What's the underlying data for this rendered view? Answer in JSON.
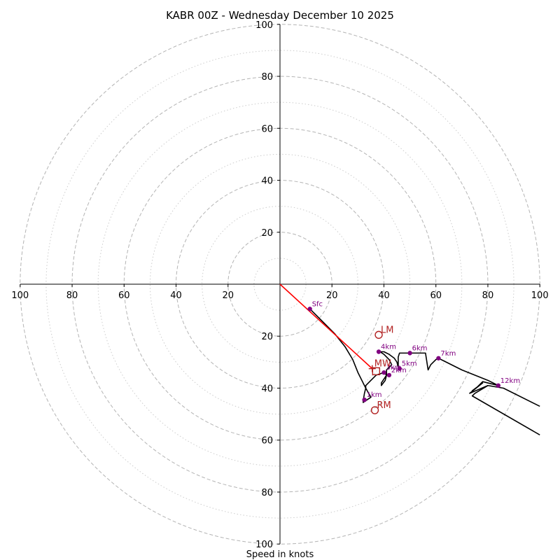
{
  "chart_data": {
    "type": "hodograph",
    "title": "KABR 00Z - Wednesday December 10 2025",
    "xlabel": "Speed in knots",
    "range": [
      -100,
      100
    ],
    "ring_major": [
      20,
      40,
      60,
      80,
      100
    ],
    "ring_minor": [
      10,
      30,
      50,
      70,
      90
    ],
    "x_ticks": [
      {
        "value": -100,
        "label": "100"
      },
      {
        "value": -80,
        "label": "80"
      },
      {
        "value": -60,
        "label": "60"
      },
      {
        "value": -40,
        "label": "40"
      },
      {
        "value": -20,
        "label": "20"
      },
      {
        "value": 20,
        "label": "20"
      },
      {
        "value": 40,
        "label": "40"
      },
      {
        "value": 60,
        "label": "60"
      },
      {
        "value": 80,
        "label": "80"
      },
      {
        "value": 100,
        "label": "100"
      }
    ],
    "y_ticks": [
      {
        "value": 100,
        "label": "100"
      },
      {
        "value": 80,
        "label": "80"
      },
      {
        "value": 60,
        "label": "60"
      },
      {
        "value": 40,
        "label": "40"
      },
      {
        "value": 20,
        "label": "20"
      },
      {
        "value": -20,
        "label": "20"
      },
      {
        "value": -40,
        "label": "40"
      },
      {
        "value": -60,
        "label": "60"
      },
      {
        "value": -80,
        "label": "80"
      },
      {
        "value": -100,
        "label": "100"
      }
    ],
    "trace_color": "#000000",
    "trace": [
      [
        11.5,
        -9.5
      ],
      [
        16,
        -14
      ],
      [
        21,
        -19
      ],
      [
        25,
        -24
      ],
      [
        28,
        -29
      ],
      [
        30,
        -34
      ],
      [
        32,
        -38
      ],
      [
        33,
        -40
      ],
      [
        33,
        -39
      ],
      [
        35,
        -37
      ],
      [
        37,
        -35
      ],
      [
        40,
        -34
      ],
      [
        41,
        -35
      ],
      [
        40.5,
        -37
      ],
      [
        39,
        -39
      ],
      [
        39,
        -38
      ],
      [
        41,
        -35
      ],
      [
        41,
        -33
      ],
      [
        43,
        -31
      ],
      [
        42,
        -29
      ],
      [
        41,
        -28
      ],
      [
        40,
        -27
      ],
      [
        38.5,
        -26
      ],
      [
        40,
        -26
      ],
      [
        42,
        -27
      ],
      [
        44,
        -28.5
      ],
      [
        45,
        -30
      ],
      [
        45.5,
        -32
      ],
      [
        46,
        -33
      ],
      [
        45.5,
        -32
      ],
      [
        45.5,
        -28
      ],
      [
        46,
        -26.5
      ],
      [
        48,
        -26.5
      ],
      [
        50,
        -26.5
      ],
      [
        56,
        -26.5
      ],
      [
        57,
        -33
      ],
      [
        58,
        -31
      ],
      [
        60,
        -29
      ],
      [
        61,
        -28.5
      ],
      [
        70,
        -33
      ],
      [
        80,
        -37
      ],
      [
        84,
        -39
      ],
      [
        80,
        -38
      ],
      [
        78,
        -37.5
      ],
      [
        76,
        -39.5
      ],
      [
        74,
        -41
      ],
      [
        78,
        -38
      ],
      [
        73,
        -42
      ],
      [
        80,
        -39
      ],
      [
        86,
        -40
      ],
      [
        100,
        -47
      ]
    ],
    "trace_low": [
      [
        33,
        -40
      ],
      [
        32.5,
        -42
      ],
      [
        32,
        -45
      ],
      [
        32,
        -45.5
      ],
      [
        35,
        -43.5
      ],
      [
        33,
        -40
      ]
    ],
    "trace_branch": [
      [
        80,
        -39
      ],
      [
        75,
        -42
      ],
      [
        74,
        -43
      ],
      [
        100,
        -58
      ]
    ],
    "height_markers": [
      {
        "label": "Sfc",
        "u": 11.5,
        "v": -9.5
      },
      {
        "label": "1km",
        "u": 32.5,
        "v": -44.5
      },
      {
        "label": "2km",
        "u": 42,
        "v": -35
      },
      {
        "label": "3km",
        "u": 40,
        "v": -34
      },
      {
        "label": "4km",
        "u": 38,
        "v": -26
      },
      {
        "label": "5km",
        "u": 46,
        "v": -32.5
      },
      {
        "label": "6km",
        "u": 50,
        "v": -26.5
      },
      {
        "label": "7km",
        "u": 61,
        "v": -28.5
      },
      {
        "label": "12km",
        "u": 84,
        "v": -39
      }
    ],
    "marker_color": "#800080",
    "storm_motion": [
      {
        "label": "LM",
        "u": 38,
        "v": -19.5,
        "symbol": "circle"
      },
      {
        "label": "RM",
        "u": 36.5,
        "v": -48.5,
        "symbol": "circle"
      },
      {
        "label": "MW",
        "u": 35.5,
        "v": -32.5,
        "symbol": "plus"
      }
    ],
    "storm_box": {
      "u": 37,
      "v": -33.5
    },
    "storm_color": "#b22222",
    "shear_vector": {
      "from": [
        0,
        0
      ],
      "to": [
        35.5,
        -32.5
      ],
      "color": "#ff0000"
    }
  }
}
